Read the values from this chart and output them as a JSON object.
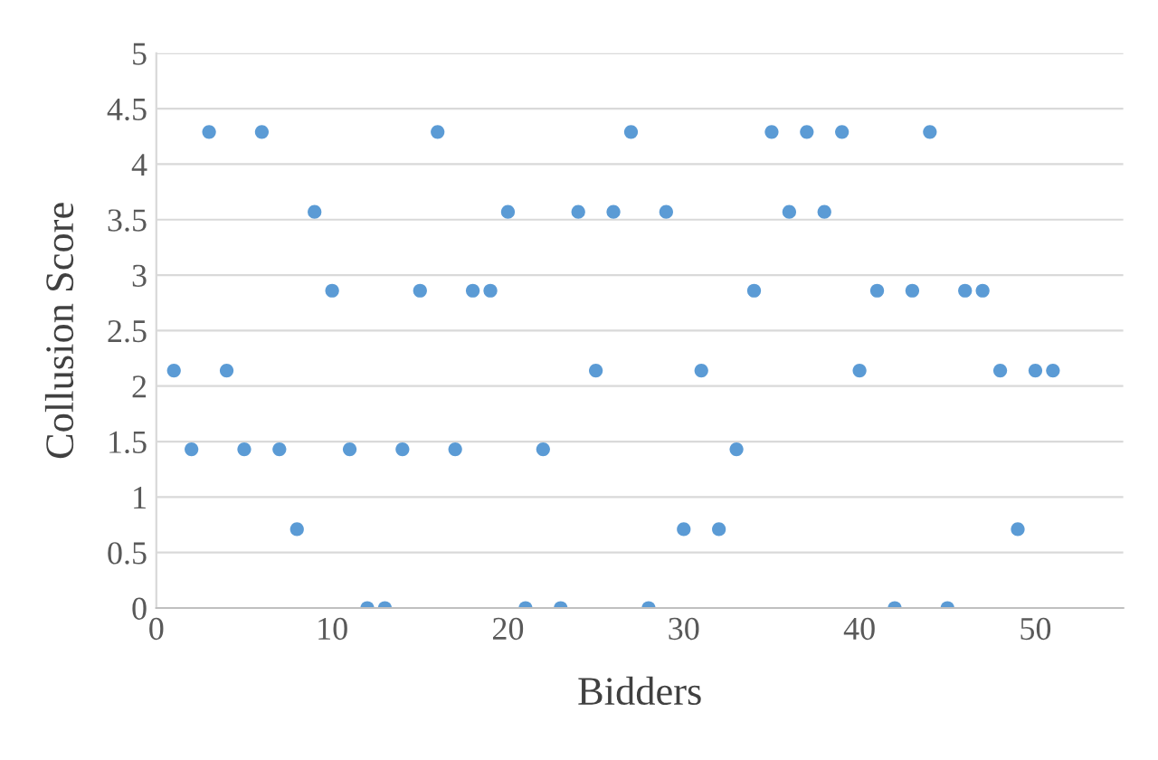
{
  "chart_data": {
    "type": "scatter",
    "xlabel": "Bidders",
    "ylabel": "Collusion Score",
    "x": [
      1,
      2,
      3,
      4,
      5,
      6,
      7,
      8,
      9,
      10,
      11,
      12,
      13,
      14,
      15,
      16,
      17,
      18,
      19,
      20,
      21,
      22,
      23,
      24,
      25,
      26,
      27,
      28,
      29,
      30,
      31,
      32,
      33,
      34,
      35,
      36,
      37,
      38,
      39,
      40,
      41,
      42,
      43,
      44,
      45,
      46,
      47,
      48,
      49,
      50,
      51
    ],
    "series": [
      {
        "color": "#5b9bd5",
        "values": [
          2.14,
          1.43,
          4.29,
          2.14,
          1.43,
          4.29,
          1.43,
          0.71,
          3.57,
          2.86,
          1.43,
          0,
          0,
          1.43,
          2.86,
          4.29,
          1.43,
          2.86,
          2.86,
          3.57,
          0,
          1.43,
          0,
          3.57,
          2.14,
          3.57,
          4.29,
          0,
          3.57,
          0.71,
          2.14,
          0.71,
          1.43,
          2.86,
          4.29,
          3.57,
          4.29,
          3.57,
          4.29,
          2.14,
          2.86,
          0,
          2.86,
          4.29,
          0,
          2.86,
          2.86,
          2.14,
          0.71,
          2.14,
          2.14
        ]
      }
    ],
    "xlim": [
      0,
      55
    ],
    "xticks": [
      0,
      10,
      20,
      30,
      40,
      50
    ],
    "ylim": [
      0,
      5
    ],
    "yticks": [
      0,
      0.5,
      1,
      1.5,
      2,
      2.5,
      3,
      3.5,
      4,
      4.5,
      5
    ],
    "grid": "y",
    "marker": "circle"
  }
}
